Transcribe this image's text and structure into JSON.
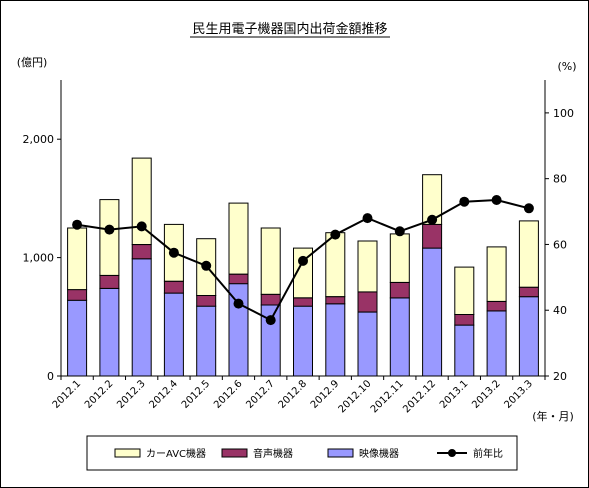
{
  "chart_data": {
    "type": "bar",
    "title": "民生用電子機器国内出荷金額推移",
    "categories": [
      "2012.1",
      "2012.2",
      "2012.3",
      "2012.4",
      "2012.5",
      "2012.6",
      "2012.7",
      "2012.8",
      "2012.9",
      "2012.10",
      "2012.11",
      "2012.12",
      "2013.1",
      "2013.2",
      "2013.3"
    ],
    "x_unit_label": "(年・月)",
    "y_left": {
      "unit_label": "(億円)",
      "range": [
        0,
        2500
      ],
      "ticks": [
        0,
        1000,
        2000
      ],
      "tick_labels": [
        "0",
        "1,000",
        "2,000"
      ]
    },
    "y_right": {
      "unit_label": "(%)",
      "range": [
        20,
        110
      ],
      "ticks": [
        20,
        40,
        60,
        80,
        100
      ],
      "tick_labels": [
        "20",
        "40",
        "60",
        "80",
        "100"
      ]
    },
    "stacked": true,
    "series": [
      {
        "name": "映像機器",
        "color": "#9999ff",
        "axis": "left",
        "values": [
          640,
          740,
          990,
          700,
          590,
          780,
          600,
          590,
          610,
          540,
          660,
          1080,
          430,
          550,
          670
        ]
      },
      {
        "name": "音声機器",
        "color": "#993366",
        "axis": "left",
        "values": [
          90,
          110,
          120,
          100,
          90,
          80,
          90,
          70,
          60,
          170,
          130,
          200,
          90,
          80,
          80
        ]
      },
      {
        "name": "カーAVC機器",
        "color": "#ffffcc",
        "axis": "left",
        "values": [
          520,
          640,
          730,
          480,
          480,
          600,
          560,
          420,
          540,
          430,
          410,
          420,
          400,
          460,
          560
        ]
      },
      {
        "name": "前年比",
        "type": "line",
        "color": "#000000",
        "axis": "right",
        "values": [
          66,
          64.5,
          65.5,
          57.5,
          53.5,
          42,
          37,
          55,
          63,
          68,
          64,
          67.5,
          73,
          73.5,
          71
        ]
      }
    ],
    "legend_position": "bottom",
    "grid": false
  }
}
